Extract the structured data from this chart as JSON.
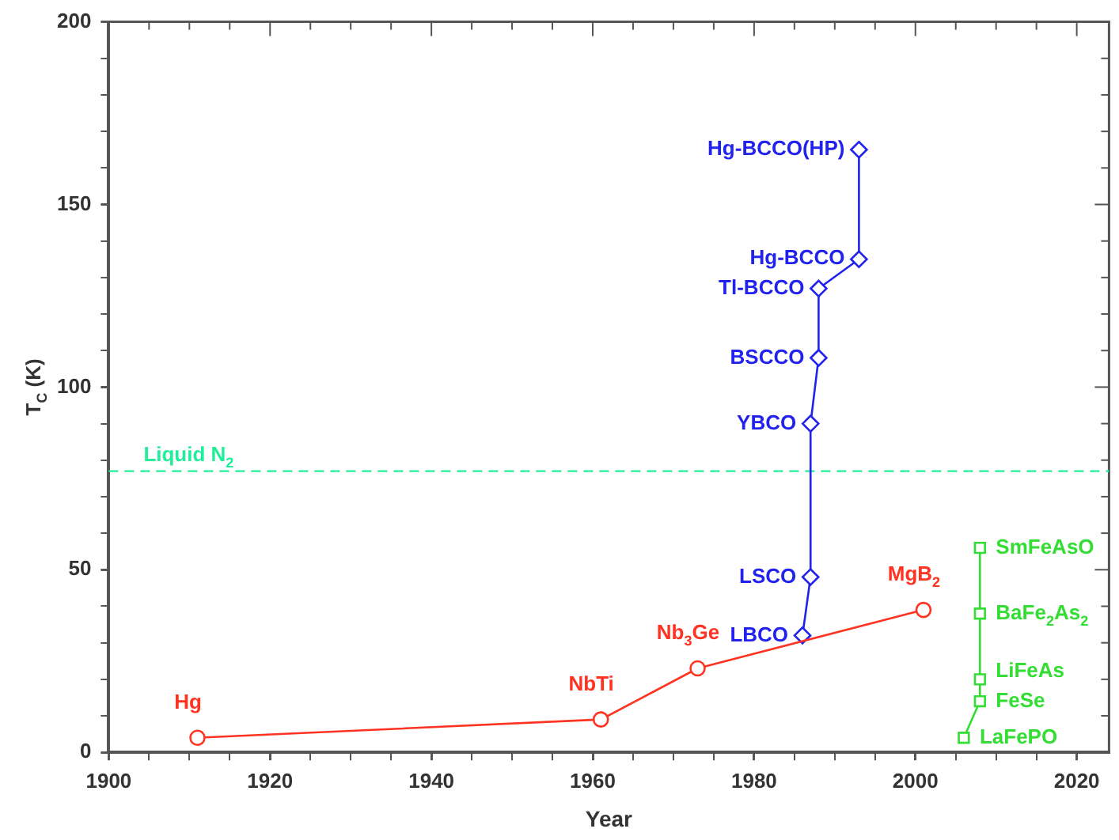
{
  "chart_data": {
    "type": "line",
    "xlabel": "Year",
    "ylabel": "T$_{C}$ (K)",
    "xlim": [
      1900,
      2024
    ],
    "ylim": [
      0,
      200
    ],
    "xticks": [
      1900,
      {
        "value": 1905,
        "label": null
      },
      {
        "value": 1910,
        "label": null
      },
      {
        "value": 1915,
        "label": null
      },
      1920,
      {
        "value": 1925,
        "label": null
      },
      {
        "value": 1930,
        "label": null
      },
      {
        "value": 1935,
        "label": null
      },
      1940,
      {
        "value": 1945,
        "label": null
      },
      {
        "value": 1950,
        "label": null
      },
      {
        "value": 1955,
        "label": null
      },
      1960,
      {
        "value": 1965,
        "label": null
      },
      {
        "value": 1970,
        "label": null
      },
      {
        "value": 1975,
        "label": null
      },
      1980,
      {
        "value": 1985,
        "label": null
      },
      {
        "value": 1990,
        "label": null
      },
      {
        "value": 1995,
        "label": null
      },
      2000,
      {
        "value": 2005,
        "label": null
      },
      {
        "value": 2010,
        "label": null
      },
      {
        "value": 2015,
        "label": null
      },
      2020
    ],
    "yticks": [
      0,
      {
        "value": 10,
        "label": null
      },
      {
        "value": 20,
        "label": null
      },
      {
        "value": 30,
        "label": null
      },
      {
        "value": 40,
        "label": null
      },
      50,
      {
        "value": 60,
        "label": null
      },
      {
        "value": 70,
        "label": null
      },
      {
        "value": 80,
        "label": null
      },
      {
        "value": 90,
        "label": null
      },
      100,
      {
        "value": 110,
        "label": null
      },
      {
        "value": 120,
        "label": null
      },
      {
        "value": 130,
        "label": null
      },
      {
        "value": 140,
        "label": null
      },
      150,
      {
        "value": 160,
        "label": null
      },
      {
        "value": 170,
        "label": null
      },
      {
        "value": 180,
        "label": null
      },
      {
        "value": 190,
        "label": null
      },
      200
    ],
    "grid": false,
    "legend": false,
    "line_style": "solid",
    "series": [
      {
        "color": "#ff3322",
        "marker": "circle",
        "x": [
          1911,
          1961,
          1973,
          2001
        ],
        "values": [
          4,
          9,
          23,
          39
        ]
      },
      {
        "color": "#2222ee",
        "marker": "diamond",
        "x": [
          1986,
          1987,
          1987,
          1988,
          1988,
          1993,
          1993
        ],
        "values": [
          32,
          48,
          90,
          108,
          127,
          135,
          165
        ]
      },
      {
        "color": "#33dd33",
        "marker": "square",
        "x": [
          2006,
          2008,
          2008,
          2008,
          2008
        ],
        "values": [
          4,
          14,
          20,
          38,
          56
        ]
      }
    ],
    "ref_lines": [
      {
        "axis": "y",
        "value": 77,
        "label": "Liquid N$_{2}$",
        "color": "#22ee99",
        "line_style": "dashed"
      }
    ],
    "annotations": [
      {
        "text": "Hg",
        "x": 1911,
        "y": 4
      },
      {
        "text": "NbTi",
        "x": 1961,
        "y": 9
      },
      {
        "text": "Nb$_{3}$Ge",
        "x": 1973,
        "y": 23
      },
      {
        "text": "MgB$_{2}$",
        "x": 2001,
        "y": 39
      },
      {
        "text": "LBCO",
        "x": 1986,
        "y": 32
      },
      {
        "text": "LSCO",
        "x": 1987,
        "y": 48
      },
      {
        "text": "YBCO",
        "x": 1987,
        "y": 90
      },
      {
        "text": "BSCCO",
        "x": 1988,
        "y": 108
      },
      {
        "text": "Tl-BCCO",
        "x": 1988,
        "y": 127
      },
      {
        "text": "Hg-BCCO",
        "x": 1993,
        "y": 135
      },
      {
        "text": "Hg-BCCO(HP)",
        "x": 1993,
        "y": 165
      },
      {
        "text": "LaFePO",
        "x": 2006,
        "y": 4
      },
      {
        "text": "FeSe",
        "x": 2008,
        "y": 14
      },
      {
        "text": "LiFeAs",
        "x": 2008,
        "y": 20
      },
      {
        "text": "BaFe$_{2}$As$_{2}$",
        "x": 2008,
        "y": 38
      },
      {
        "text": "SmFeAsO",
        "x": 2008,
        "y": 56
      }
    ]
  }
}
